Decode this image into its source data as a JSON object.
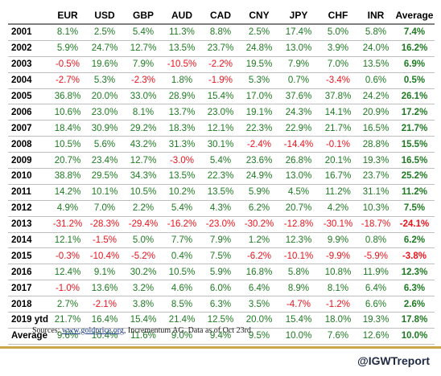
{
  "table": {
    "corner": "",
    "headers": [
      "EUR",
      "USD",
      "GBP",
      "AUD",
      "CAD",
      "CNY",
      "JPY",
      "CHF",
      "INR",
      "Average"
    ],
    "rows": [
      {
        "year": "2001",
        "values": [
          "8.1%",
          "2.5%",
          "5.4%",
          "11.3%",
          "8.8%",
          "2.5%",
          "17.4%",
          "5.0%",
          "5.8%",
          "7.4%"
        ]
      },
      {
        "year": "2002",
        "values": [
          "5.9%",
          "24.7%",
          "12.7%",
          "13.5%",
          "23.7%",
          "24.8%",
          "13.0%",
          "3.9%",
          "24.0%",
          "16.2%"
        ]
      },
      {
        "year": "2003",
        "values": [
          "-0.5%",
          "19.6%",
          "7.9%",
          "-10.5%",
          "-2.2%",
          "19.5%",
          "7.9%",
          "7.0%",
          "13.5%",
          "6.9%"
        ]
      },
      {
        "year": "2004",
        "values": [
          "-2.7%",
          "5.3%",
          "-2.3%",
          "1.8%",
          "-1.9%",
          "5.3%",
          "0.7%",
          "-3.4%",
          "0.6%",
          "0.5%"
        ]
      },
      {
        "year": "2005",
        "values": [
          "36.8%",
          "20.0%",
          "33.0%",
          "28.9%",
          "15.4%",
          "17.0%",
          "37.6%",
          "37.8%",
          "24.2%",
          "26.1%"
        ]
      },
      {
        "year": "2006",
        "values": [
          "10.6%",
          "23.0%",
          "8.1%",
          "13.7%",
          "23.0%",
          "19.1%",
          "24.3%",
          "14.1%",
          "20.9%",
          "17.2%"
        ]
      },
      {
        "year": "2007",
        "values": [
          "18.4%",
          "30.9%",
          "29.2%",
          "18.3%",
          "12.1%",
          "22.3%",
          "22.9%",
          "21.7%",
          "16.5%",
          "21.7%"
        ]
      },
      {
        "year": "2008",
        "values": [
          "10.5%",
          "5.6%",
          "43.2%",
          "31.3%",
          "30.1%",
          "-2.4%",
          "-14.4%",
          "-0.1%",
          "28.8%",
          "15.5%"
        ]
      },
      {
        "year": "2009",
        "values": [
          "20.7%",
          "23.4%",
          "12.7%",
          "-3.0%",
          "5.4%",
          "23.6%",
          "26.8%",
          "20.1%",
          "19.3%",
          "16.5%"
        ]
      },
      {
        "year": "2010",
        "values": [
          "38.8%",
          "29.5%",
          "34.3%",
          "13.5%",
          "22.3%",
          "24.9%",
          "13.0%",
          "16.7%",
          "23.7%",
          "25.2%"
        ]
      },
      {
        "year": "2011",
        "values": [
          "14.2%",
          "10.1%",
          "10.5%",
          "10.2%",
          "13.5%",
          "5.9%",
          "4.5%",
          "11.2%",
          "31.1%",
          "11.2%"
        ]
      },
      {
        "year": "2012",
        "values": [
          "4.9%",
          "7.0%",
          "2.2%",
          "5.4%",
          "4.3%",
          "6.2%",
          "20.7%",
          "4.2%",
          "10.3%",
          "7.5%"
        ]
      },
      {
        "year": "2013",
        "values": [
          "-31.2%",
          "-28.3%",
          "-29.4%",
          "-16.2%",
          "-23.0%",
          "-30.2%",
          "-12.8%",
          "-30.1%",
          "-18.7%",
          "-24.1%"
        ]
      },
      {
        "year": "2014",
        "values": [
          "12.1%",
          "-1.5%",
          "5.0%",
          "7.7%",
          "7.9%",
          "1.2%",
          "12.3%",
          "9.9%",
          "0.8%",
          "6.2%"
        ]
      },
      {
        "year": "2015",
        "values": [
          "-0.3%",
          "-10.4%",
          "-5.2%",
          "0.4%",
          "7.5%",
          "-6.2%",
          "-10.1%",
          "-9.9%",
          "-5.9%",
          "-3.8%"
        ]
      },
      {
        "year": "2016",
        "values": [
          "12.4%",
          "9.1%",
          "30.2%",
          "10.5%",
          "5.9%",
          "16.8%",
          "5.8%",
          "10.8%",
          "11.9%",
          "12.3%"
        ]
      },
      {
        "year": "2017",
        "values": [
          "-1.0%",
          "13.6%",
          "3.2%",
          "4.6%",
          "6.0%",
          "6.4%",
          "8.9%",
          "8.1%",
          "6.4%",
          "6.3%"
        ]
      },
      {
        "year": "2018",
        "values": [
          "2.7%",
          "-2.1%",
          "3.8%",
          "8.5%",
          "6.3%",
          "3.5%",
          "-4.7%",
          "-1.2%",
          "6.6%",
          "2.6%"
        ]
      },
      {
        "year": "2019 ytd",
        "values": [
          "21.7%",
          "16.4%",
          "15.4%",
          "21.4%",
          "12.5%",
          "20.0%",
          "15.4%",
          "18.0%",
          "19.3%",
          "17.8%"
        ]
      },
      {
        "year": "Average",
        "values": [
          "9.6%",
          "10.4%",
          "11.6%",
          "9.0%",
          "9.4%",
          "9.5%",
          "10.0%",
          "7.6%",
          "12.6%",
          "10.0%"
        ]
      }
    ]
  },
  "footer": {
    "sources_prefix": "Sources:  ",
    "sources_link": "www.goldprice.org",
    "sources_suffix": ", Incrementum AG. Data as of Oct 23rd",
    "handle": "@IGWTreport"
  },
  "colors": {
    "positive": "#1e7b22",
    "negative": "#e8141c",
    "rule": "#c9a64a"
  }
}
